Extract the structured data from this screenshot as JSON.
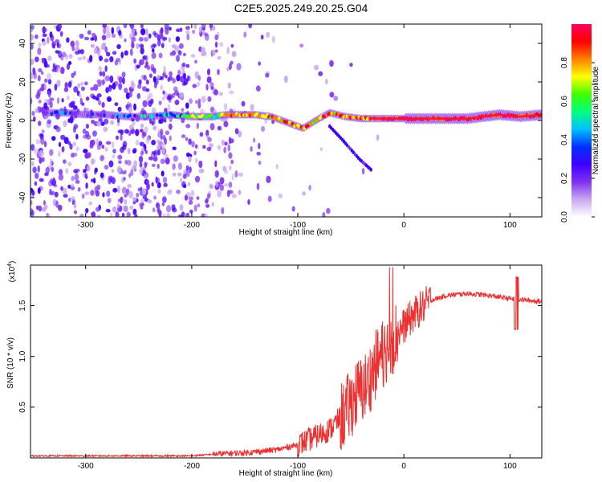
{
  "title": "C2E5.2025.249.20.25.G04",
  "chart_data": [
    {
      "type": "heatmap",
      "title": "C2E5.2025.249.20.25.G04",
      "xlabel": "Height of straight line (km)",
      "ylabel": "Frequency (Hz)",
      "xlim": [
        -352,
        130
      ],
      "ylim": [
        -50,
        50
      ],
      "xticks": [
        -300,
        -200,
        -100,
        0,
        100
      ],
      "yticks": [
        -40,
        -20,
        0,
        20,
        40
      ],
      "colorbar": {
        "label": "Normalized spectral amplitude",
        "range": [
          0,
          1
        ],
        "ticks": [
          "0.0",
          "0.2",
          "0.4",
          "0.6",
          "0.8"
        ],
        "tick_values": [
          0.0,
          0.2,
          0.4,
          0.6,
          0.8
        ],
        "colors": [
          "#ffffff",
          "#c8a8f0",
          "#8030f0",
          "#4000ff",
          "#0030ff",
          "#00c0ff",
          "#00ff80",
          "#40ff00",
          "#ffff00",
          "#ff8000",
          "#ff0000",
          "#ff0060"
        ]
      },
      "main_band": [
        {
          "x": -320,
          "f": 4
        },
        {
          "x": -300,
          "f": 3
        },
        {
          "x": -280,
          "f": 3
        },
        {
          "x": -260,
          "f": 2
        },
        {
          "x": -240,
          "f": 2
        },
        {
          "x": -220,
          "f": 3
        },
        {
          "x": -200,
          "f": 2
        },
        {
          "x": -180,
          "f": 2
        },
        {
          "x": -168,
          "f": 3
        },
        {
          "x": -155,
          "f": 3
        },
        {
          "x": -140,
          "f": 3
        },
        {
          "x": -125,
          "f": 2
        },
        {
          "x": -110,
          "f": -1
        },
        {
          "x": -95,
          "f": -4
        },
        {
          "x": -80,
          "f": 1
        },
        {
          "x": -70,
          "f": 4
        },
        {
          "x": -55,
          "f": 2
        },
        {
          "x": -40,
          "f": 1
        },
        {
          "x": -20,
          "f": 1
        },
        {
          "x": 0,
          "f": 1
        },
        {
          "x": 30,
          "f": 1
        },
        {
          "x": 60,
          "f": 1
        },
        {
          "x": 90,
          "f": 3
        },
        {
          "x": 110,
          "f": 2
        },
        {
          "x": 130,
          "f": 3
        }
      ],
      "branch": [
        {
          "x": -70,
          "f": -3
        },
        {
          "x": -58,
          "f": -10
        },
        {
          "x": -50,
          "f": -15
        },
        {
          "x": -42,
          "f": -20
        },
        {
          "x": -36,
          "f": -23
        },
        {
          "x": -30,
          "f": -26
        }
      ]
    },
    {
      "type": "line",
      "xlabel": "Height of straight line (km)",
      "ylabel": "SNR (10 * v/v)",
      "multiplier": "(x10",
      "multiplier_exp": "4",
      "multiplier_close": ")",
      "xlim": [
        -352,
        130
      ],
      "ylim": [
        0,
        1.9
      ],
      "xticks": [
        -300,
        -200,
        -100,
        0,
        100
      ],
      "yticks": [
        0.5,
        1.0,
        1.5
      ],
      "ytick_labels": [
        "0.5",
        "1.0",
        "1.5"
      ],
      "color": "#ee3030",
      "series": [
        {
          "x": -352,
          "y": 0.02
        },
        {
          "x": -250,
          "y": 0.02
        },
        {
          "x": -200,
          "y": 0.02
        },
        {
          "x": -175,
          "y": 0.04
        },
        {
          "x": -150,
          "y": 0.05
        },
        {
          "x": -120,
          "y": 0.08
        },
        {
          "x": -100,
          "y": 0.13
        },
        {
          "x": -85,
          "y": 0.2
        },
        {
          "x": -70,
          "y": 0.28
        },
        {
          "x": -55,
          "y": 0.45
        },
        {
          "x": -45,
          "y": 0.62
        },
        {
          "x": -35,
          "y": 0.72
        },
        {
          "x": -25,
          "y": 0.95
        },
        {
          "x": -15,
          "y": 1.1
        },
        {
          "x": -8,
          "y": 1.2
        },
        {
          "x": 0,
          "y": 1.3
        },
        {
          "x": 10,
          "y": 1.42
        },
        {
          "x": 25,
          "y": 1.55
        },
        {
          "x": 40,
          "y": 1.6
        },
        {
          "x": 60,
          "y": 1.62
        },
        {
          "x": 80,
          "y": 1.6
        },
        {
          "x": 100,
          "y": 1.57
        },
        {
          "x": 130,
          "y": 1.54
        }
      ]
    }
  ]
}
